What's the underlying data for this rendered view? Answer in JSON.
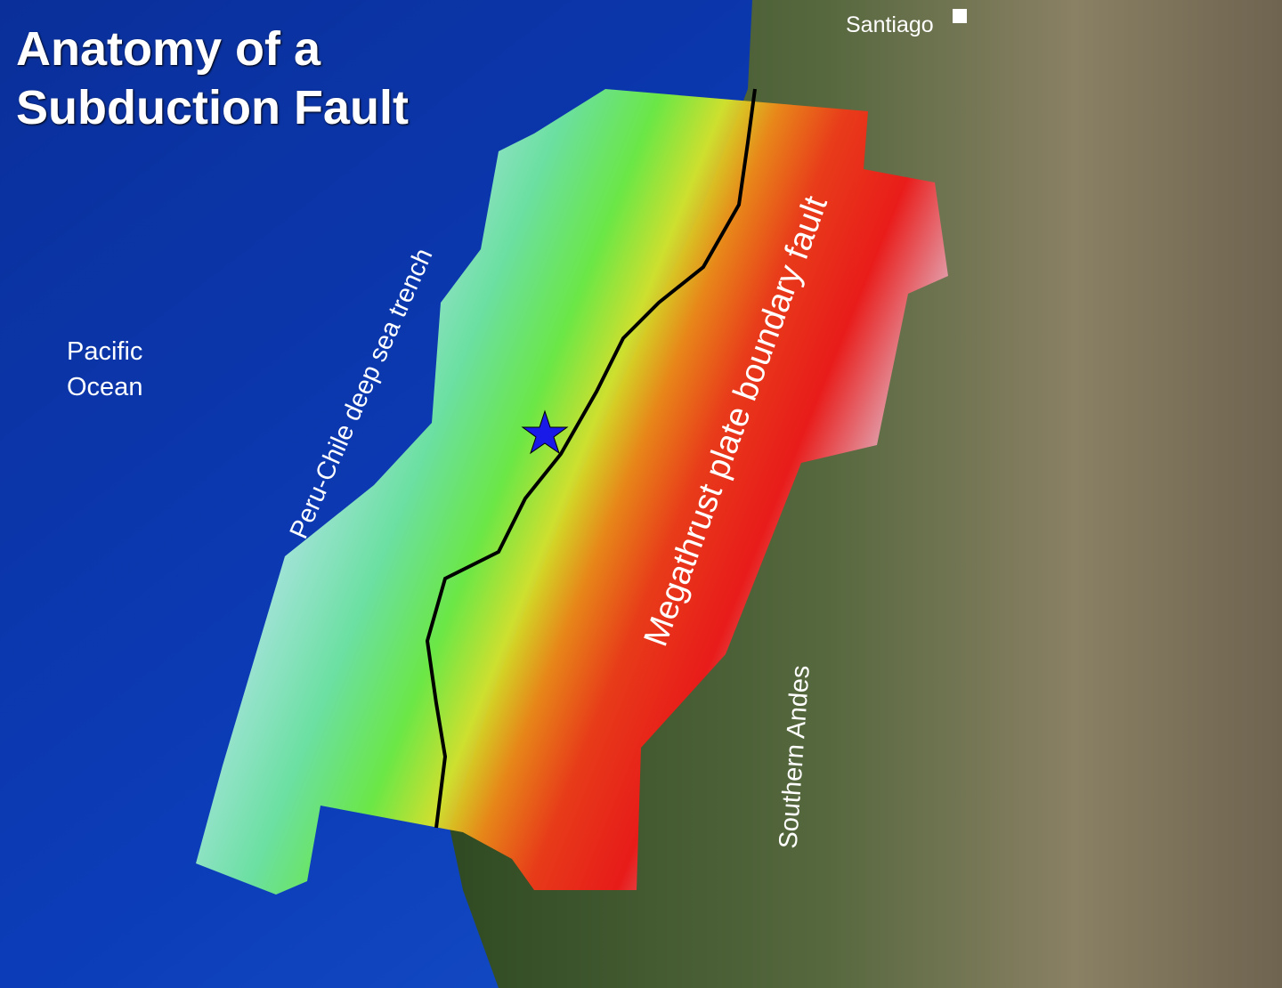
{
  "title": {
    "line1": "Anatomy of a",
    "line2": "Subduction Fault"
  },
  "labels": {
    "city": "Santiago",
    "ocean_line1": "Pacific",
    "ocean_line2": "Ocean",
    "trench": "Peru-Chile deep sea trench",
    "fault": "Megathrust plate boundary fault",
    "mountains": "Southern Andes"
  },
  "markers": {
    "epicenter": "star-icon",
    "city": "square-marker"
  },
  "colors": {
    "ocean": "#0b34a8",
    "land": "#3f5a2c",
    "slip_low": "#9fe8d8",
    "slip_mid": "#7ef03a",
    "slip_yellow": "#e8e020",
    "slip_orange": "#f07010",
    "slip_high": "#f01818",
    "slip_edge": "#e8a0b0",
    "epicenter": "#1a1ae8"
  }
}
